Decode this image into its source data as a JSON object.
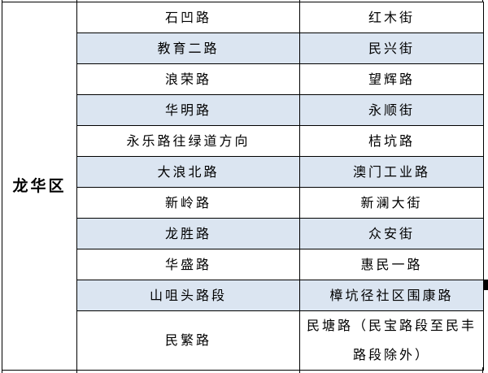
{
  "table": {
    "district_label": "龙华区",
    "columns": [
      "district",
      "road_primary",
      "road_secondary"
    ],
    "rows": [
      {
        "col2": "石凹路",
        "col3": "红木街",
        "highlight": false
      },
      {
        "col2": "教育二路",
        "col3": "民兴街",
        "highlight": true
      },
      {
        "col2": "浪荣路",
        "col3": "望辉路",
        "highlight": false
      },
      {
        "col2": "华明路",
        "col3": "永顺街",
        "highlight": true
      },
      {
        "col2": "永乐路往绿道方向",
        "col3": "桔坑路",
        "highlight": false
      },
      {
        "col2": "大浪北路",
        "col3": "澳门工业路",
        "highlight": true
      },
      {
        "col2": "新岭路",
        "col3": "新澜大街",
        "highlight": false
      },
      {
        "col2": "龙胜路",
        "col3": "众安街",
        "highlight": true
      },
      {
        "col2": "华盛路",
        "col3": "惠民一路",
        "highlight": false
      },
      {
        "col2": "山咀头路段",
        "col3": "樟坑径社区围康路",
        "highlight": true
      },
      {
        "col2": "民繁路",
        "col3": "民塘路（民宝路段至民丰路段除外）",
        "highlight": false
      }
    ],
    "colors": {
      "highlight_row": "#dbe5f1",
      "default_row": "#ffffff",
      "border": "#000000",
      "text": "#000000"
    }
  }
}
